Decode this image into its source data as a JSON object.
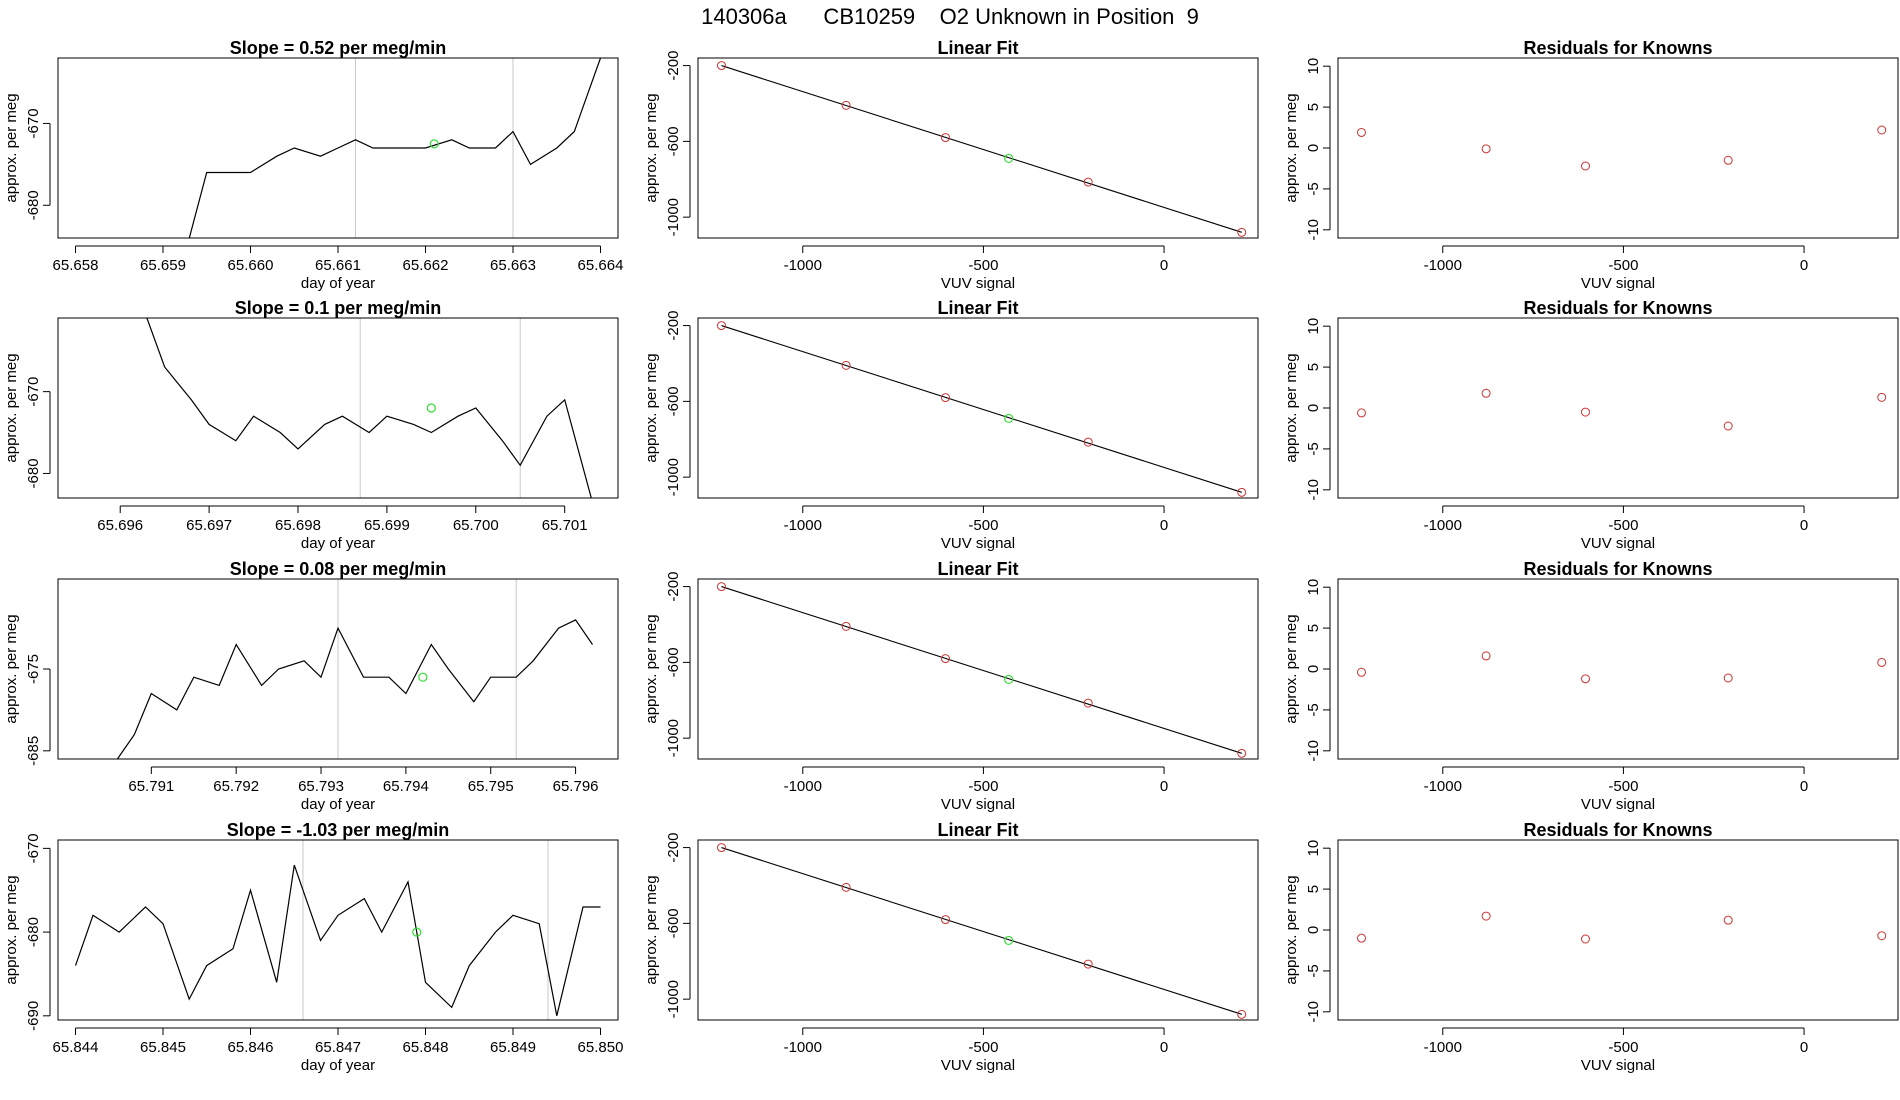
{
  "figure_title": "140306a      CB10259    O2 Unknown in Position  9",
  "colors": {
    "line": "#000000",
    "axis": "#000000",
    "vline": "#c8c8c8",
    "known_points": "#cc3333",
    "unknown_point": "#33dd33"
  },
  "chart_data": [
    {
      "type": "line",
      "title": "Slope =  0.52  per meg/min",
      "xlabel": "day of year",
      "ylabel": "approx. per meg",
      "xlim": [
        65.6578,
        65.6642
      ],
      "ylim": [
        -684,
        -662
      ],
      "xticks": [
        65.658,
        65.659,
        65.66,
        65.661,
        65.662,
        65.663,
        65.664
      ],
      "xtick_labels": [
        "65.658",
        "65.659",
        "65.660",
        "65.661",
        "65.662",
        "65.663",
        "65.664"
      ],
      "yticks": [
        -680,
        -670
      ],
      "ytick_labels": [
        "-680",
        "-670"
      ],
      "vlines": [
        65.6612,
        65.663
      ],
      "series": [
        {
          "x": [
            65.6593,
            65.6595,
            65.6597,
            65.66,
            65.6603,
            65.6605,
            65.6608,
            65.661,
            65.6612,
            65.6614,
            65.6617,
            65.662,
            65.6623,
            65.6625,
            65.6628,
            65.663,
            65.6632,
            65.6635,
            65.6637,
            65.6638,
            65.664
          ],
          "values": [
            -684,
            -676,
            -676,
            -676,
            -674,
            -673,
            -674,
            -673,
            -672,
            -673,
            -673,
            -673,
            -672,
            -673,
            -673,
            -671,
            -675,
            -673,
            -671,
            -668,
            -662
          ]
        }
      ],
      "unknown_point": {
        "x": 65.6621,
        "y": -672.5
      }
    },
    {
      "type": "scatter",
      "title": "Linear Fit",
      "xlabel": "VUV signal",
      "ylabel": "approx. per meg",
      "xlim": [
        -1290,
        260
      ],
      "ylim": [
        -1110,
        -160
      ],
      "xticks": [
        -1000,
        -500,
        0
      ],
      "xtick_labels": [
        "-1000",
        "-500",
        "0"
      ],
      "yticks": [
        -1000,
        -600,
        -200
      ],
      "ytick_labels": [
        "-1000",
        "-600",
        "-200"
      ],
      "fit_line": {
        "x": [
          -1225,
          215
        ],
        "y": [
          -200,
          -1080
        ]
      },
      "known": {
        "x": [
          -1225,
          -880,
          -605,
          -210,
          215
        ],
        "y": [
          -200,
          -410,
          -580,
          -815,
          -1080
        ]
      },
      "unknown_point": {
        "x": -430,
        "y": -690
      }
    },
    {
      "type": "scatter",
      "title": "Residuals for Knowns",
      "xlabel": "VUV signal",
      "ylabel": "approx. per meg",
      "xlim": [
        -1290,
        260
      ],
      "ylim": [
        -11,
        11
      ],
      "xticks": [
        -1000,
        -500,
        0
      ],
      "xtick_labels": [
        "-1000",
        "-500",
        "0"
      ],
      "yticks": [
        -10,
        -5,
        0,
        5,
        10
      ],
      "ytick_labels": [
        "-10",
        "-5",
        "0",
        "5",
        "10"
      ],
      "known": {
        "x": [
          -1225,
          -880,
          -605,
          -210,
          215
        ],
        "y": [
          1.9,
          -0.1,
          -2.2,
          -1.5,
          2.2
        ]
      }
    },
    {
      "type": "line",
      "title": "Slope =  0.1  per meg/min",
      "xlabel": "day of year",
      "ylabel": "approx. per meg",
      "xlim": [
        65.6953,
        65.7016
      ],
      "ylim": [
        -683,
        -661
      ],
      "xticks": [
        65.696,
        65.697,
        65.698,
        65.699,
        65.7,
        65.701
      ],
      "xtick_labels": [
        "65.696",
        "65.697",
        "65.698",
        "65.699",
        "65.700",
        "65.701"
      ],
      "yticks": [
        -680,
        -670
      ],
      "ytick_labels": [
        "-680",
        "-670"
      ],
      "vlines": [
        65.6987,
        65.7005
      ],
      "series": [
        {
          "x": [
            65.6963,
            65.6965,
            65.6968,
            65.697,
            65.6973,
            65.6975,
            65.6978,
            65.698,
            65.6983,
            65.6985,
            65.6988,
            65.699,
            65.6993,
            65.6995,
            65.6998,
            65.7,
            65.7003,
            65.7005,
            65.7008,
            65.701,
            65.7013
          ],
          "values": [
            -661,
            -667,
            -671,
            -674,
            -676,
            -673,
            -675,
            -677,
            -674,
            -673,
            -675,
            -673,
            -674,
            -675,
            -673,
            -672,
            -676,
            -679,
            -673,
            -671,
            -683
          ]
        }
      ],
      "unknown_point": {
        "x": 65.6995,
        "y": -672
      }
    },
    {
      "type": "scatter",
      "title": "Linear Fit",
      "xlabel": "VUV signal",
      "ylabel": "approx. per meg",
      "xlim": [
        -1290,
        260
      ],
      "ylim": [
        -1110,
        -160
      ],
      "xticks": [
        -1000,
        -500,
        0
      ],
      "xtick_labels": [
        "-1000",
        "-500",
        "0"
      ],
      "yticks": [
        -1000,
        -600,
        -200
      ],
      "ytick_labels": [
        "-1000",
        "-600",
        "-200"
      ],
      "fit_line": {
        "x": [
          -1225,
          215
        ],
        "y": [
          -200,
          -1080
        ]
      },
      "known": {
        "x": [
          -1225,
          -880,
          -605,
          -210,
          215
        ],
        "y": [
          -200,
          -410,
          -580,
          -815,
          -1080
        ]
      },
      "unknown_point": {
        "x": -430,
        "y": -690
      }
    },
    {
      "type": "scatter",
      "title": "Residuals for Knowns",
      "xlabel": "VUV signal",
      "ylabel": "approx. per meg",
      "xlim": [
        -1290,
        260
      ],
      "ylim": [
        -11,
        11
      ],
      "xticks": [
        -1000,
        -500,
        0
      ],
      "xtick_labels": [
        "-1000",
        "-500",
        "0"
      ],
      "yticks": [
        -10,
        -5,
        0,
        5,
        10
      ],
      "ytick_labels": [
        "-10",
        "-5",
        "0",
        "5",
        "10"
      ],
      "known": {
        "x": [
          -1225,
          -880,
          -605,
          -210,
          215
        ],
        "y": [
          -0.6,
          1.8,
          -0.5,
          -2.2,
          1.3
        ]
      }
    },
    {
      "type": "line",
      "title": "Slope =  0.08  per meg/min",
      "xlabel": "day of year",
      "ylabel": "approx. per meg",
      "xlim": [
        65.7899,
        65.7965
      ],
      "ylim": [
        -686,
        -664
      ],
      "xticks": [
        65.791,
        65.792,
        65.793,
        65.794,
        65.795,
        65.796
      ],
      "xtick_labels": [
        "65.791",
        "65.792",
        "65.793",
        "65.794",
        "65.795",
        "65.796"
      ],
      "yticks": [
        -685,
        -675
      ],
      "ytick_labels": [
        "-685",
        "-675"
      ],
      "vlines": [
        65.7932,
        65.7953
      ],
      "series": [
        {
          "x": [
            65.7906,
            65.7908,
            65.791,
            65.7913,
            65.7915,
            65.7918,
            65.792,
            65.7923,
            65.7925,
            65.7928,
            65.793,
            65.7932,
            65.7935,
            65.7938,
            65.794,
            65.7943,
            65.7945,
            65.7948,
            65.795,
            65.7953,
            65.7955,
            65.7958,
            65.796,
            65.7962
          ],
          "values": [
            -686,
            -683,
            -678,
            -680,
            -676,
            -677,
            -672,
            -677,
            -675,
            -674,
            -676,
            -670,
            -676,
            -676,
            -678,
            -672,
            -675,
            -679,
            -676,
            -676,
            -674,
            -670,
            -669,
            -672
          ]
        }
      ],
      "unknown_point": {
        "x": 65.7942,
        "y": -676
      }
    },
    {
      "type": "scatter",
      "title": "Linear Fit",
      "xlabel": "VUV signal",
      "ylabel": "approx. per meg",
      "xlim": [
        -1290,
        260
      ],
      "ylim": [
        -1110,
        -160
      ],
      "xticks": [
        -1000,
        -500,
        0
      ],
      "xtick_labels": [
        "-1000",
        "-500",
        "0"
      ],
      "yticks": [
        -1000,
        -600,
        -200
      ],
      "ytick_labels": [
        "-1000",
        "-600",
        "-200"
      ],
      "fit_line": {
        "x": [
          -1225,
          215
        ],
        "y": [
          -200,
          -1080
        ]
      },
      "known": {
        "x": [
          -1225,
          -880,
          -605,
          -210,
          215
        ],
        "y": [
          -200,
          -410,
          -580,
          -815,
          -1080
        ]
      },
      "unknown_point": {
        "x": -430,
        "y": -690
      }
    },
    {
      "type": "scatter",
      "title": "Residuals for Knowns",
      "xlabel": "VUV signal",
      "ylabel": "approx. per meg",
      "xlim": [
        -1290,
        260
      ],
      "ylim": [
        -11,
        11
      ],
      "xticks": [
        -1000,
        -500,
        0
      ],
      "xtick_labels": [
        "-1000",
        "-500",
        "0"
      ],
      "yticks": [
        -10,
        -5,
        0,
        5,
        10
      ],
      "ytick_labels": [
        "-10",
        "-5",
        "0",
        "5",
        "10"
      ],
      "known": {
        "x": [
          -1225,
          -880,
          -605,
          -210,
          215
        ],
        "y": [
          -0.4,
          1.6,
          -1.2,
          -1.1,
          0.8
        ]
      }
    },
    {
      "type": "line",
      "title": "Slope =  -1.03  per meg/min",
      "xlabel": "day of year",
      "ylabel": "approx. per meg",
      "xlim": [
        65.8438,
        65.8502
      ],
      "ylim": [
        -690.5,
        -669
      ],
      "xticks": [
        65.844,
        65.845,
        65.846,
        65.847,
        65.848,
        65.849,
        65.85
      ],
      "xtick_labels": [
        "65.844",
        "65.845",
        "65.846",
        "65.847",
        "65.848",
        "65.849",
        "65.850"
      ],
      "yticks": [
        -690,
        -680,
        -670
      ],
      "ytick_labels": [
        "-690",
        "-680",
        "-670"
      ],
      "vlines": [
        65.8466,
        65.8494
      ],
      "series": [
        {
          "x": [
            65.844,
            65.8442,
            65.8445,
            65.8448,
            65.845,
            65.8453,
            65.8455,
            65.8458,
            65.846,
            65.8463,
            65.8465,
            65.8468,
            65.847,
            65.8473,
            65.8475,
            65.8478,
            65.848,
            65.8483,
            65.8485,
            65.8488,
            65.849,
            65.8493,
            65.8495,
            65.8498,
            65.85
          ],
          "values": [
            -684,
            -678,
            -680,
            -677,
            -679,
            -688,
            -684,
            -682,
            -675,
            -686,
            -672,
            -681,
            -678,
            -676,
            -680,
            -674,
            -686,
            -689,
            -684,
            -680,
            -678,
            -679,
            -690,
            -677,
            -677
          ]
        }
      ],
      "unknown_point": {
        "x": 65.8479,
        "y": -680
      }
    },
    {
      "type": "scatter",
      "title": "Linear Fit",
      "xlabel": "VUV signal",
      "ylabel": "approx. per meg",
      "xlim": [
        -1290,
        260
      ],
      "ylim": [
        -1110,
        -160
      ],
      "xticks": [
        -1000,
        -500,
        0
      ],
      "xtick_labels": [
        "-1000",
        "-500",
        "0"
      ],
      "yticks": [
        -1000,
        -600,
        -200
      ],
      "ytick_labels": [
        "-1000",
        "-600",
        "-200"
      ],
      "fit_line": {
        "x": [
          -1225,
          215
        ],
        "y": [
          -200,
          -1080
        ]
      },
      "known": {
        "x": [
          -1225,
          -880,
          -605,
          -210,
          215
        ],
        "y": [
          -200,
          -410,
          -580,
          -815,
          -1080
        ]
      },
      "unknown_point": {
        "x": -430,
        "y": -690
      }
    },
    {
      "type": "scatter",
      "title": "Residuals for Knowns",
      "xlabel": "VUV signal",
      "ylabel": "approx. per meg",
      "xlim": [
        -1290,
        260
      ],
      "ylim": [
        -11,
        11
      ],
      "xticks": [
        -1000,
        -500,
        0
      ],
      "xtick_labels": [
        "-1000",
        "-500",
        "0"
      ],
      "yticks": [
        -10,
        -5,
        0,
        5,
        10
      ],
      "ytick_labels": [
        "-10",
        "-5",
        "0",
        "5",
        "10"
      ],
      "known": {
        "x": [
          -1225,
          -880,
          -605,
          -210,
          215
        ],
        "y": [
          -1.0,
          1.7,
          -1.1,
          1.2,
          -0.7
        ]
      }
    }
  ]
}
